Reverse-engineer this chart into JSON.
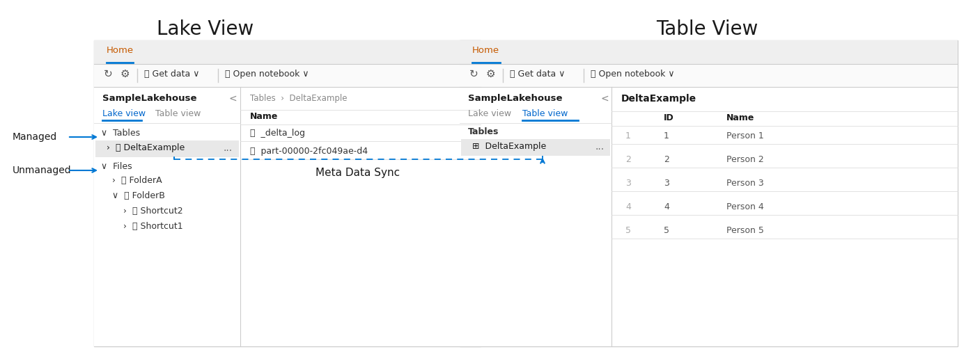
{
  "title_left": "Lake View",
  "title_right": "Table View",
  "bg_color": "#ffffff",
  "orange_text": "#c65a00",
  "blue_text": "#0066cc",
  "blue_arrow": "#0078d4",
  "dashed_line_color": "#0078d4",
  "managed_label": "Managed",
  "unmanaged_label": "Unmanaged",
  "meta_sync_label": "Meta Data Sync",
  "home_tab": "Home",
  "sample_lakehouse": "SampleLakehouse",
  "lake_view_tab": "Lake view",
  "table_view_tab": "Table view",
  "tables_label": "Tables",
  "files_label": "Files",
  "delta_example": "DeltaExample",
  "folder_a": "FolderA",
  "folder_b": "FolderB",
  "shortcut2": "Shortcut2",
  "shortcut1": "Shortcut1",
  "breadcrumb_pre": "Tables",
  "breadcrumb_post": "DeltaExample",
  "name_col": "Name",
  "delta_log": "_delta_log",
  "part_file": "part-00000-2fc049ae-d4",
  "table_title": "DeltaExample",
  "col_id": "ID",
  "col_name": "Name",
  "rows": [
    [
      1,
      1,
      "Person 1"
    ],
    [
      2,
      2,
      "Person 2"
    ],
    [
      3,
      3,
      "Person 3"
    ],
    [
      4,
      4,
      "Person 4"
    ],
    [
      5,
      5,
      "Person 5"
    ]
  ]
}
